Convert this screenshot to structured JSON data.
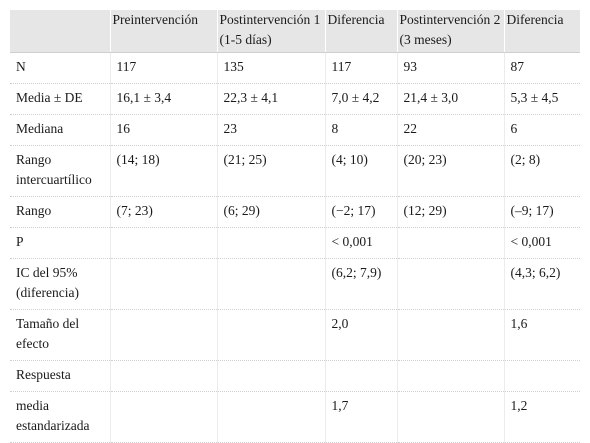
{
  "table": {
    "headers": [
      "",
      "Preintervención",
      "Postintervención 1 (1-5 días)",
      "Diferencia",
      "Postintervención 2 (3 meses)",
      "Diferencia"
    ],
    "rows": [
      [
        "N",
        "117",
        "135",
        "117",
        "93",
        "87"
      ],
      [
        "Media ± DE",
        "16,1 ± 3,4",
        "22,3 ± 4,1",
        "7,0 ± 4,2",
        "21,4 ± 3,0",
        "5,3 ± 4,5"
      ],
      [
        "Mediana",
        "16",
        "23",
        "8",
        "22",
        "6"
      ],
      [
        "Rango intercuartílico",
        "(14; 18)",
        "(21; 25)",
        "(4; 10)",
        "(20; 23)",
        "(2; 8)"
      ],
      [
        "Rango",
        "(7; 23)",
        "(6; 29)",
        "(−2; 17)",
        "(12; 29)",
        "(–9; 17)"
      ],
      [
        "P",
        "",
        "",
        "< 0,001",
        "",
        "< 0,001"
      ],
      [
        "IC del 95% (diferencia)",
        "",
        "",
        "(6,2; 7,9)",
        "",
        "(4,3; 6,2)"
      ],
      [
        "Tamaño del efecto",
        "",
        "",
        "2,0",
        "",
        "1,6"
      ],
      [
        "Respuesta",
        "",
        "",
        "",
        "",
        ""
      ],
      [
        "media estandarizada",
        "",
        "",
        "1,7",
        "",
        "1,2"
      ]
    ]
  }
}
